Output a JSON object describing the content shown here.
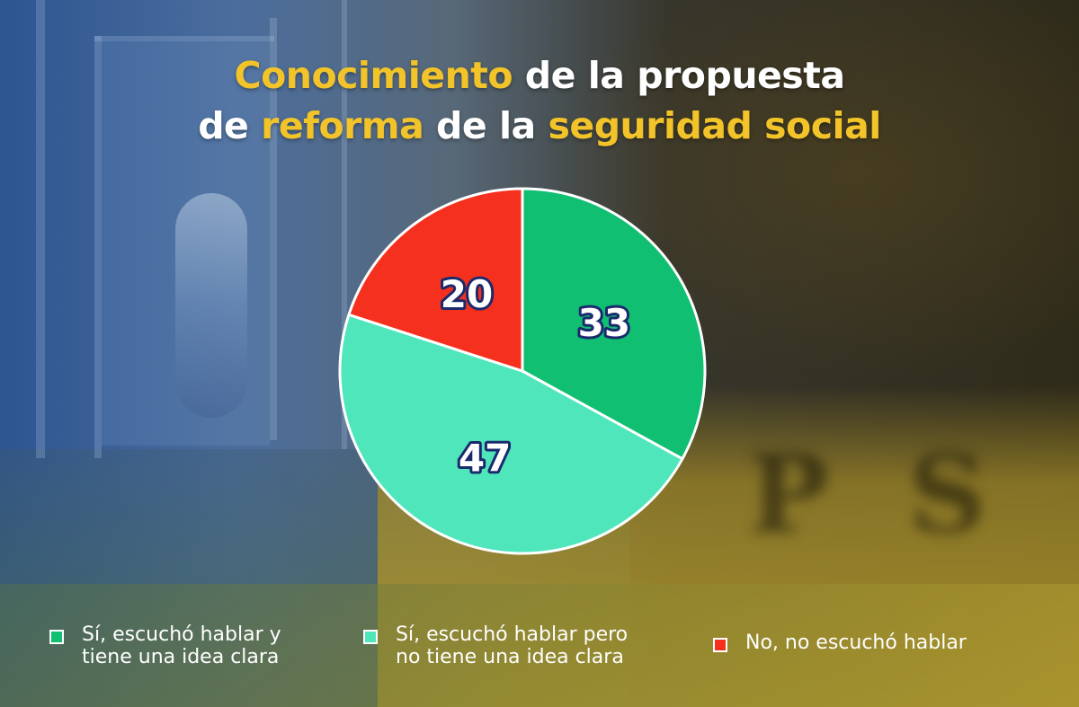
{
  "title": {
    "line1": {
      "part1": "Conocimiento",
      "part2": " de la propuesta"
    },
    "line2": {
      "part1": "de ",
      "part2": "reforma",
      "part3": " de la ",
      "part4": "seguridad social"
    }
  },
  "colors": {
    "title_highlight": "#f2c42a",
    "title_text": "#ffffff",
    "label_text": "#ffffff",
    "label_stroke": "#1a2a6c"
  },
  "chart_data": {
    "type": "pie",
    "start_angle_deg": 0,
    "direction": "clockwise",
    "slices": [
      {
        "label": "Sí, escuchó hablar y\ntiene una idea clara",
        "value": 33,
        "color": "#10bf72"
      },
      {
        "label": "Sí, escuchó hablar pero\nno tiene una idea clara",
        "value": 47,
        "color": "#4fe6bc"
      },
      {
        "label": "No, no escuchó hablar",
        "value": 20,
        "color": "#f5301e"
      }
    ],
    "legend_placement": "bottom"
  }
}
